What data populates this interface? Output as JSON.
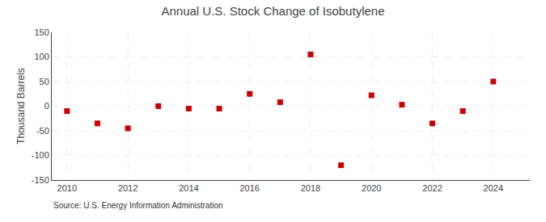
{
  "chart_data": {
    "type": "scatter",
    "title": "Annual U.S. Stock Change of Isobutylene",
    "ylabel": "Thousand Barrels",
    "annotations": [
      "Source: U.S. Energy Information Administration"
    ],
    "x": [
      2010,
      2011,
      2012,
      2013,
      2014,
      2015,
      2016,
      2017,
      2018,
      2019,
      2020,
      2021,
      2022,
      2023,
      2024
    ],
    "values": [
      -10,
      -35,
      -45,
      0,
      -5,
      -5,
      25,
      8,
      105,
      -120,
      22,
      3,
      -35,
      -10,
      50
    ],
    "color": "#cc0000",
    "marker": "square",
    "xlim": [
      2009.5,
      2025.2
    ],
    "xticks": [
      2010,
      2012,
      2014,
      2016,
      2018,
      2020,
      2022,
      2024
    ],
    "ylim": [
      -150,
      150
    ],
    "yticks": [
      -150,
      -100,
      -50,
      0,
      50,
      100,
      150
    ],
    "grid": true
  }
}
